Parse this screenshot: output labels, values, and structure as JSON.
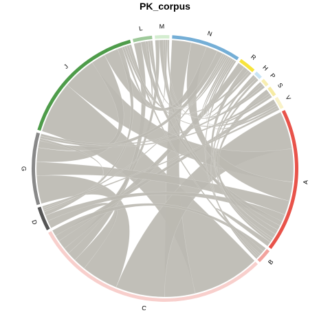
{
  "chart_data": {
    "type": "chord",
    "title": "PK_corpus",
    "link_color": "#bcbab2",
    "sectors": [
      {
        "name": "A",
        "value": 60,
        "color": "#e8534a"
      },
      {
        "name": "B",
        "value": 6,
        "color": "#f2a39e"
      },
      {
        "name": "C",
        "value": 100,
        "color": "#f8cfcc"
      },
      {
        "name": "D",
        "value": 10,
        "color": "#555555"
      },
      {
        "name": "G",
        "value": 30,
        "color": "#888888"
      },
      {
        "name": "J",
        "value": 55,
        "color": "#4e9c4a"
      },
      {
        "name": "L",
        "value": 8,
        "color": "#9ec99a"
      },
      {
        "name": "M",
        "value": 6,
        "color": "#d4edd0"
      },
      {
        "name": "N",
        "value": 29,
        "color": "#74aed6"
      },
      {
        "name": "R",
        "value": 7,
        "color": "#f7e43b"
      },
      {
        "name": "H",
        "value": 3,
        "color": "#c9e4f4"
      },
      {
        "name": "P",
        "value": 3,
        "color": "#f8eeb0"
      },
      {
        "name": "S",
        "value": 4,
        "color": "#f6eba3"
      },
      {
        "name": "V",
        "value": 5,
        "color": "#f9f2c7"
      }
    ],
    "links": [
      {
        "source": "C",
        "target": "J",
        "value": 22
      },
      {
        "source": "C",
        "target": "N",
        "value": 10
      },
      {
        "source": "C",
        "target": "A",
        "value": 16
      },
      {
        "source": "C",
        "target": "G",
        "value": 12
      },
      {
        "source": "C",
        "target": "D",
        "value": 4
      },
      {
        "source": "C",
        "target": "L",
        "value": 3
      },
      {
        "source": "C",
        "target": "M",
        "value": 2
      },
      {
        "source": "C",
        "target": "R",
        "value": 3
      },
      {
        "source": "C",
        "target": "V",
        "value": 2
      },
      {
        "source": "C",
        "target": "B",
        "value": 2
      },
      {
        "source": "A",
        "target": "J",
        "value": 14
      },
      {
        "source": "A",
        "target": "N",
        "value": 8
      },
      {
        "source": "A",
        "target": "G",
        "value": 6
      },
      {
        "source": "A",
        "target": "D",
        "value": 3
      },
      {
        "source": "A",
        "target": "L",
        "value": 2
      },
      {
        "source": "A",
        "target": "M",
        "value": 2
      },
      {
        "source": "A",
        "target": "R",
        "value": 2
      },
      {
        "source": "A",
        "target": "S",
        "value": 2
      },
      {
        "source": "A",
        "target": "H",
        "value": 1
      },
      {
        "source": "A",
        "target": "P",
        "value": 1
      },
      {
        "source": "A",
        "target": "B",
        "value": 2
      },
      {
        "source": "J",
        "target": "G",
        "value": 6
      },
      {
        "source": "J",
        "target": "N",
        "value": 6
      },
      {
        "source": "J",
        "target": "D",
        "value": 2
      },
      {
        "source": "J",
        "target": "L",
        "value": 1
      },
      {
        "source": "J",
        "target": "R",
        "value": 1
      },
      {
        "source": "J",
        "target": "V",
        "value": 1
      },
      {
        "source": "J",
        "target": "B",
        "value": 1
      },
      {
        "source": "G",
        "target": "N",
        "value": 3
      },
      {
        "source": "G",
        "target": "D",
        "value": 1
      },
      {
        "source": "G",
        "target": "S",
        "value": 1
      },
      {
        "source": "G",
        "target": "P",
        "value": 1
      },
      {
        "source": "N",
        "target": "D",
        "value": 1
      },
      {
        "source": "N",
        "target": "L",
        "value": 1
      },
      {
        "source": "N",
        "target": "M",
        "value": 1
      },
      {
        "source": "N",
        "target": "R",
        "value": 1
      },
      {
        "source": "N",
        "target": "H",
        "value": 1
      },
      {
        "source": "N",
        "target": "S",
        "value": 1
      },
      {
        "source": "N",
        "target": "V",
        "value": 1
      },
      {
        "source": "N",
        "target": "B",
        "value": 1
      },
      {
        "source": "D",
        "target": "V",
        "value": 1
      },
      {
        "source": "L",
        "target": "M",
        "value": 1
      },
      {
        "source": "M",
        "target": "P",
        "value": 1
      },
      {
        "source": "H",
        "target": "B",
        "value": 1
      }
    ]
  }
}
